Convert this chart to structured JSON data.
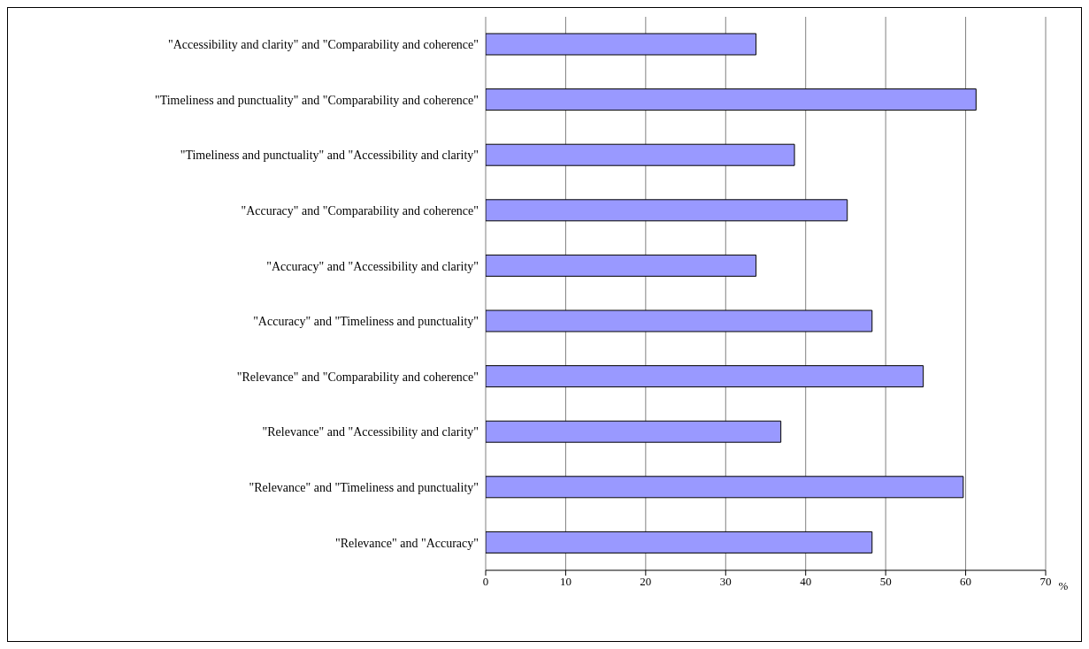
{
  "chart_data": {
    "type": "bar",
    "orientation": "horizontal",
    "xlabel": "%",
    "categories": [
      "\"Accessibility and clarity\" and \"Comparability and coherence\"",
      "\"Timeliness and punctuality\" and \"Comparability and coherence\"",
      "\"Timeliness and punctuality\" and \"Accessibility and clarity\"",
      "\"Accuracy\" and \"Comparability and coherence\"",
      "\"Accuracy\" and \"Accessibility and clarity\"",
      "\"Accuracy\" and \"Timeliness and punctuality\"",
      "\"Relevance\" and \"Comparability and coherence\"",
      "\"Relevance\" and \"Accessibility and clarity\"",
      "\"Relevance\" and \"Timeliness and punctuality\"",
      "\"Relevance\" and \"Accuracy\""
    ],
    "values": [
      33.8,
      61.3,
      38.6,
      45.2,
      33.8,
      48.3,
      54.7,
      36.9,
      59.7,
      48.3
    ],
    "color": "#9999ff",
    "xlim": [
      0,
      70
    ],
    "xticks": [
      0,
      10,
      20,
      30,
      40,
      50,
      60,
      70
    ],
    "grid": "x"
  }
}
